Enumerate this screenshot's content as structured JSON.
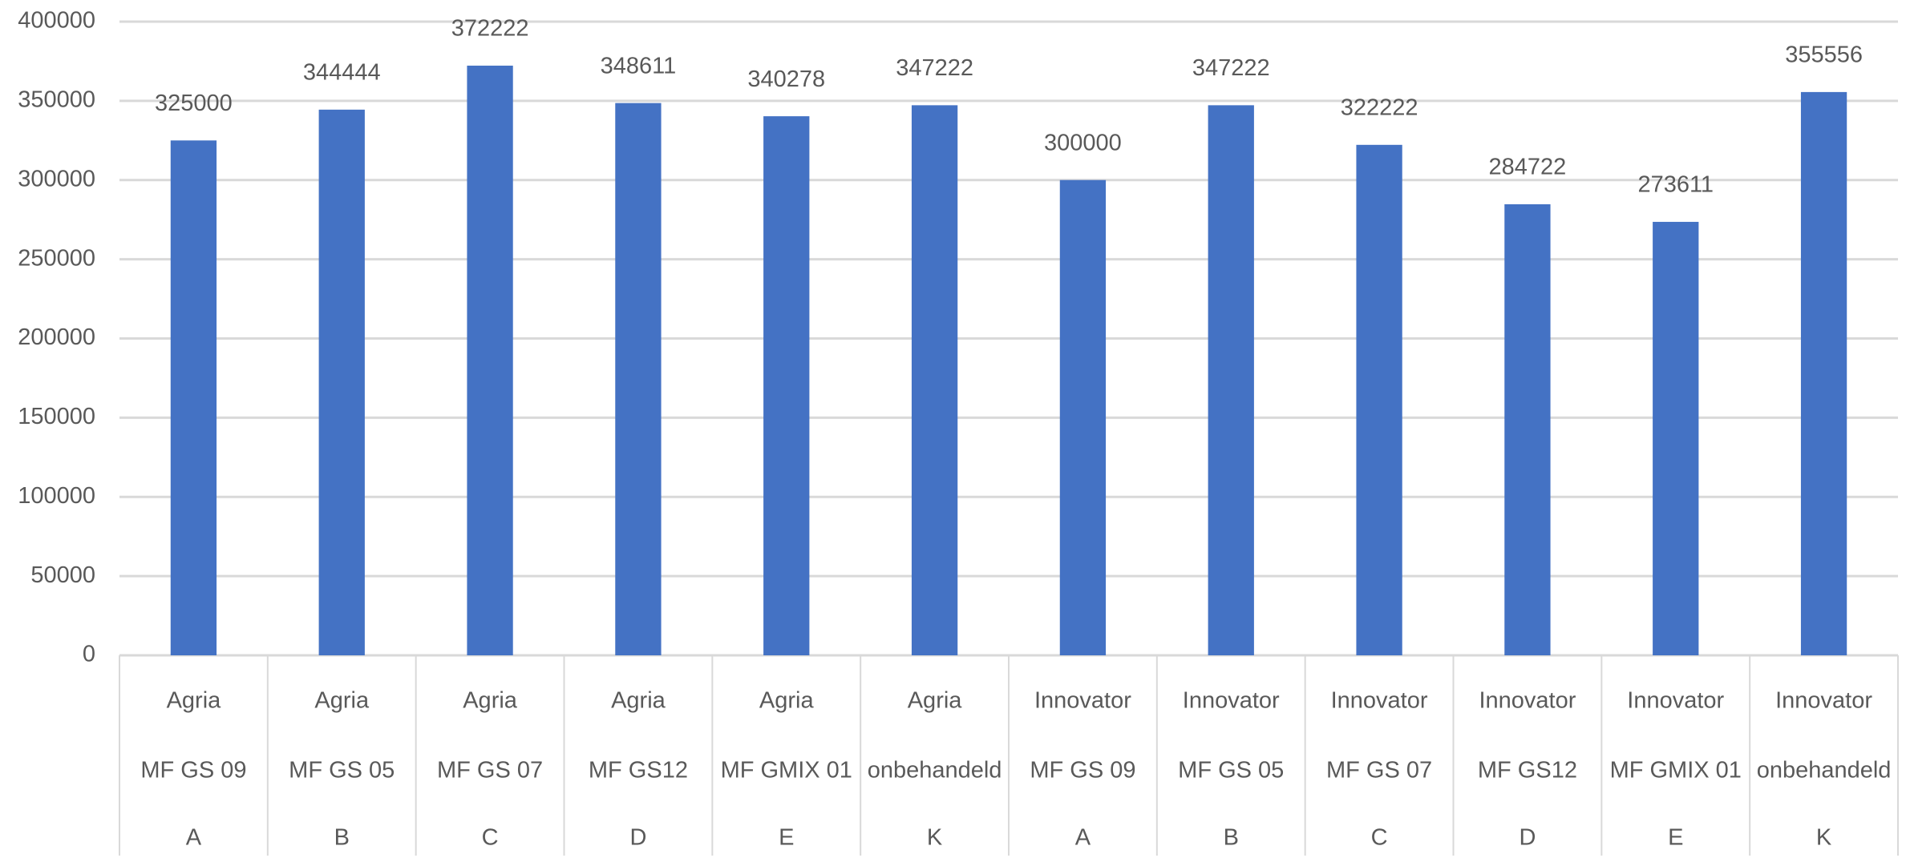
{
  "chart_data": {
    "type": "bar",
    "categories": [
      [
        "Agria",
        "MF GS 09",
        "A"
      ],
      [
        "Agria",
        "MF GS 05",
        "B"
      ],
      [
        "Agria",
        "MF GS 07",
        "C"
      ],
      [
        "Agria",
        "MF GS12",
        "D"
      ],
      [
        "Agria",
        "MF GMIX 01",
        "E"
      ],
      [
        "Agria",
        "onbehandeld",
        "K"
      ],
      [
        "Innovator",
        "MF GS 09",
        "A"
      ],
      [
        "Innovator",
        "MF GS 05",
        "B"
      ],
      [
        "Innovator",
        "MF GS 07",
        "C"
      ],
      [
        "Innovator",
        "MF GS12",
        "D"
      ],
      [
        "Innovator",
        "MF GMIX 01",
        "E"
      ],
      [
        "Innovator",
        "onbehandeld",
        "K"
      ]
    ],
    "values": [
      325000,
      344444,
      372222,
      348611,
      340278,
      347222,
      300000,
      347222,
      322222,
      284722,
      273611,
      355556
    ],
    "color": "#4472c4",
    "ylim": [
      0,
      400000
    ],
    "yticks": [
      0,
      50000,
      100000,
      150000,
      200000,
      250000,
      300000,
      350000,
      400000
    ],
    "grid": true
  }
}
